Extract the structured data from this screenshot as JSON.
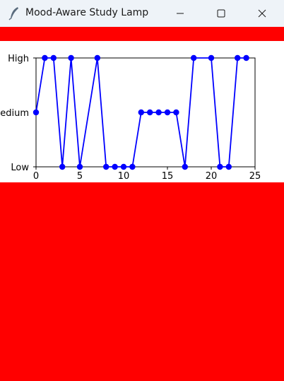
{
  "window": {
    "title": "Mood-Aware Study Lamp",
    "icon": "feather-icon"
  },
  "colors": {
    "titlebar_bg": "#eef3f8",
    "background": "#ff0000",
    "series": "#0000ff"
  },
  "chart_data": {
    "type": "line",
    "x": [
      0,
      1,
      2,
      3,
      4,
      5,
      6,
      7,
      8,
      9,
      10,
      11,
      12,
      13,
      14,
      15,
      16,
      17,
      18,
      19,
      20,
      21,
      22,
      23,
      24
    ],
    "series": [
      {
        "values": [
          1,
          2,
          2,
          0,
          2,
          0,
          null,
          2,
          0,
          0,
          0,
          0,
          1,
          1,
          1,
          1,
          1,
          0,
          2,
          null,
          2,
          0,
          0,
          2,
          2
        ]
      }
    ],
    "xticks": [
      "0",
      "5",
      "10",
      "15",
      "20",
      "25"
    ],
    "yticks": [
      "Low",
      "Medium",
      "High"
    ],
    "xlim": [
      0,
      25
    ],
    "ylim": [
      0,
      2
    ],
    "marker": "circle",
    "grid": false
  }
}
